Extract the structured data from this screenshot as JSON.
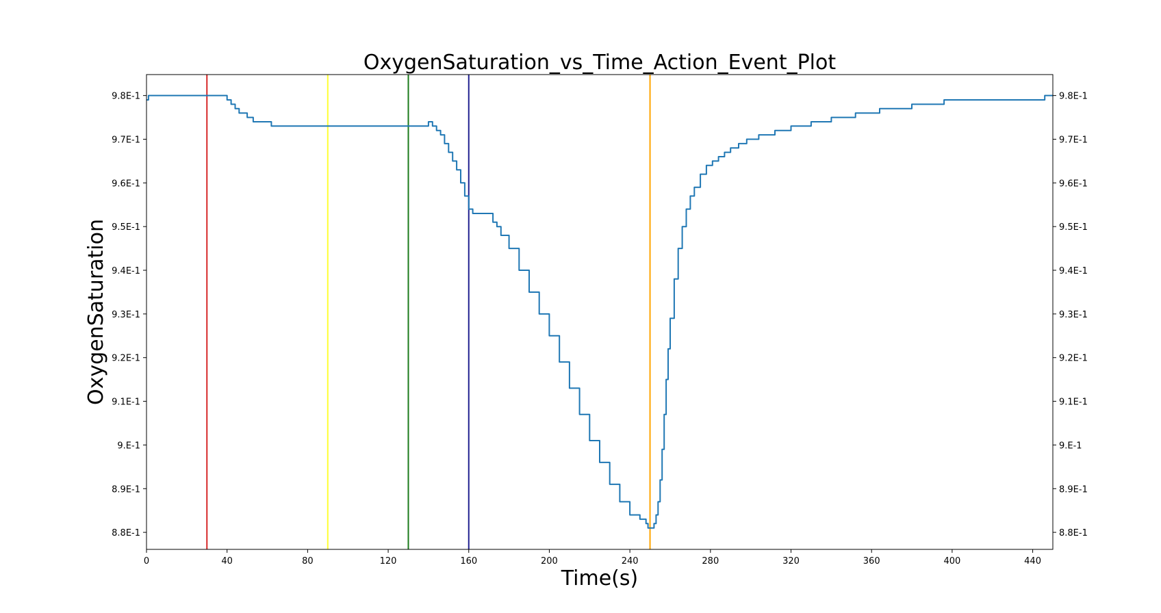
{
  "chart_data": {
    "type": "line",
    "title": "OxygenSaturation_vs_Time_Action_Event_Plot",
    "xlabel": "Time(s)",
    "ylabel": "OxygenSaturation",
    "xlim": [
      0,
      450
    ],
    "ylim": [
      0.8761,
      0.9848
    ],
    "grid": false,
    "y_axis_mirrored_right": true,
    "x_ticks": [
      0,
      40,
      80,
      120,
      160,
      200,
      240,
      280,
      320,
      360,
      400,
      440
    ],
    "x_tick_labels": [
      "0",
      "40",
      "80",
      "120",
      "160",
      "200",
      "240",
      "280",
      "320",
      "360",
      "400",
      "440"
    ],
    "y_ticks": [
      0.88,
      0.89,
      0.9,
      0.91,
      0.92,
      0.93,
      0.94,
      0.95,
      0.96,
      0.97,
      0.98
    ],
    "y_tick_labels": [
      "8.8E-1",
      "8.9E-1",
      "9.E-1",
      "9.1E-1",
      "9.2E-1",
      "9.3E-1",
      "9.4E-1",
      "9.5E-1",
      "9.6E-1",
      "9.7E-1",
      "9.8E-1"
    ],
    "event_lines": [
      {
        "x": 30,
        "color": "#d62728"
      },
      {
        "x": 90,
        "color": "#ffff33"
      },
      {
        "x": 130,
        "color": "#1a7a1a"
      },
      {
        "x": 160,
        "color": "#1f1f8f"
      },
      {
        "x": 250,
        "color": "#ffa500"
      }
    ],
    "series": [
      {
        "color": "#1f77b4",
        "x": [
          0,
          1,
          34,
          40,
          42,
          44,
          46,
          48,
          50,
          53,
          62,
          116,
          140,
          142,
          144,
          146,
          148,
          150,
          152,
          154,
          156,
          158,
          160,
          162,
          170,
          172,
          174,
          176,
          180,
          185,
          190,
          195,
          200,
          205,
          210,
          215,
          220,
          225,
          230,
          235,
          240,
          245,
          248,
          249,
          250,
          251,
          252,
          253,
          254,
          255,
          256,
          257,
          258,
          259,
          260,
          262,
          264,
          266,
          268,
          270,
          272,
          275,
          278,
          281,
          284,
          287,
          290,
          294,
          298,
          304,
          312,
          320,
          330,
          340,
          352,
          364,
          380,
          396,
          418,
          446,
          447,
          450
        ],
        "y": [
          0.979,
          0.98,
          0.98,
          0.979,
          0.978,
          0.977,
          0.976,
          0.976,
          0.975,
          0.974,
          0.973,
          0.973,
          0.974,
          0.973,
          0.972,
          0.971,
          0.969,
          0.967,
          0.965,
          0.963,
          0.96,
          0.957,
          0.954,
          0.953,
          0.953,
          0.951,
          0.95,
          0.948,
          0.945,
          0.94,
          0.935,
          0.93,
          0.925,
          0.919,
          0.913,
          0.907,
          0.901,
          0.896,
          0.891,
          0.887,
          0.884,
          0.883,
          0.882,
          0.881,
          0.881,
          0.881,
          0.882,
          0.884,
          0.887,
          0.892,
          0.899,
          0.907,
          0.915,
          0.922,
          0.929,
          0.938,
          0.945,
          0.95,
          0.954,
          0.957,
          0.959,
          0.962,
          0.964,
          0.965,
          0.966,
          0.967,
          0.968,
          0.969,
          0.97,
          0.971,
          0.972,
          0.973,
          0.974,
          0.975,
          0.976,
          0.977,
          0.978,
          0.979,
          0.979,
          0.98,
          0.98,
          0.98
        ]
      }
    ]
  }
}
